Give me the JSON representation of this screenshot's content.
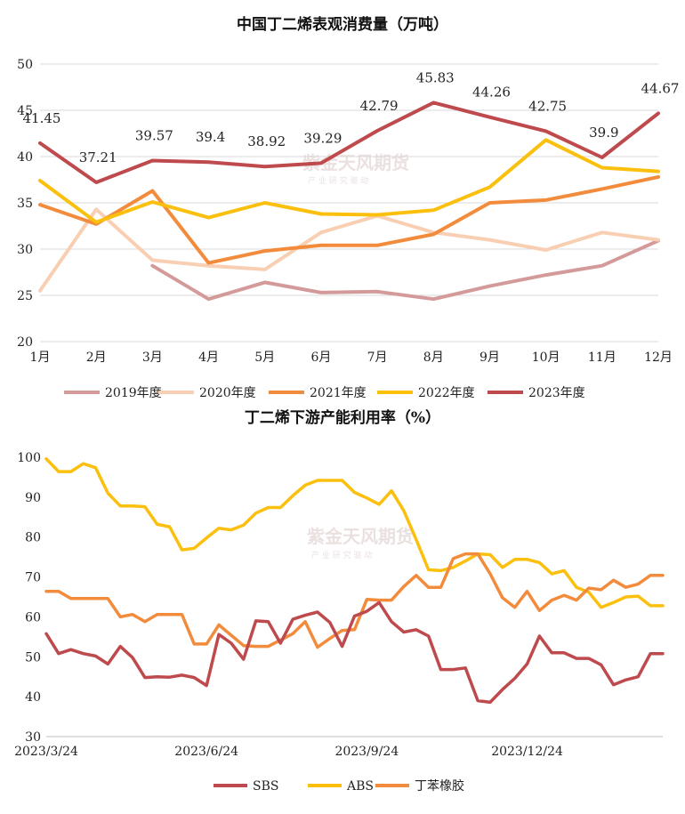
{
  "chart_data": [
    {
      "type": "line",
      "title": "中国丁二烯表观消费量（万吨）",
      "categories": [
        "1月",
        "2月",
        "3月",
        "4月",
        "5月",
        "6月",
        "7月",
        "8月",
        "9月",
        "10月",
        "11月",
        "12月"
      ],
      "ylim": [
        20,
        50
      ],
      "yticks": [
        20,
        25,
        30,
        35,
        40,
        45,
        50
      ],
      "grid": true,
      "legend_position": "bottom",
      "series": [
        {
          "name": "2019年度",
          "color": "#d49a9a",
          "values": [
            null,
            null,
            28.2,
            24.6,
            26.4,
            25.3,
            25.4,
            24.6,
            26.0,
            27.2,
            28.2,
            30.9
          ]
        },
        {
          "name": "2020年度",
          "color": "#f8cfb2",
          "values": [
            25.5,
            34.3,
            28.8,
            28.2,
            27.8,
            31.8,
            33.6,
            31.8,
            31.0,
            29.9,
            31.8,
            31.0
          ]
        },
        {
          "name": "2021年度",
          "color": "#f28c3c",
          "values": [
            34.8,
            32.7,
            36.3,
            28.5,
            29.8,
            30.4,
            30.4,
            31.6,
            35.0,
            35.3,
            36.5,
            37.8
          ]
        },
        {
          "name": "2022年度",
          "color": "#fbbf0e",
          "values": [
            37.4,
            32.9,
            35.1,
            33.4,
            35.0,
            33.8,
            33.7,
            34.2,
            36.7,
            41.8,
            38.8,
            38.4
          ]
        },
        {
          "name": "2023年度",
          "color": "#be4a4d",
          "values": [
            41.45,
            37.21,
            39.57,
            39.4,
            38.92,
            39.29,
            42.79,
            45.83,
            44.26,
            42.75,
            39.9,
            44.67
          ],
          "labels": [
            "41.45",
            "37.21",
            "39.57",
            "39.4",
            "38.92",
            "39.29",
            "42.79",
            "45.83",
            "44.26",
            "42.75",
            "39.9",
            "44.67"
          ]
        }
      ]
    },
    {
      "type": "line",
      "title": "丁二烯下游产能利用率（%）",
      "x": [
        "2023/3/24",
        "2023/3/31",
        "2023/4/7",
        "2023/4/14",
        "2023/4/21",
        "2023/4/28",
        "2023/5/5",
        "2023/5/12",
        "2023/5/19",
        "2023/5/26",
        "2023/6/2",
        "2023/6/9",
        "2023/6/16",
        "2023/6/23",
        "2023/6/30",
        "2023/7/7",
        "2023/7/14",
        "2023/7/21",
        "2023/7/28",
        "2023/8/4",
        "2023/8/11",
        "2023/8/18",
        "2023/8/25",
        "2023/9/1",
        "2023/9/8",
        "2023/9/15",
        "2023/9/22",
        "2023/9/29",
        "2023/10/6",
        "2023/10/13",
        "2023/10/20",
        "2023/10/27",
        "2023/11/3",
        "2023/11/10",
        "2023/11/17",
        "2023/11/24",
        "2023/12/1",
        "2023/12/8",
        "2023/12/15",
        "2023/12/22",
        "2023/12/29",
        "2024/1/5",
        "2024/1/12",
        "2024/1/19",
        "2024/1/26",
        "2024/2/2",
        "2024/2/9",
        "2024/2/16",
        "2024/2/23",
        "2024/3/1",
        "2024/3/8"
      ],
      "xtick_labels": [
        "2023/3/24",
        "2023/6/24",
        "2023/9/24",
        "2023/12/24"
      ],
      "xtick_indices": [
        0,
        13,
        26,
        39
      ],
      "ylim": [
        30,
        100
      ],
      "yticks": [
        30,
        40,
        50,
        60,
        70,
        80,
        90,
        100
      ],
      "grid": false,
      "legend_position": "bottom",
      "series": [
        {
          "name": "SBS",
          "color": "#be4a4d",
          "values": [
            55.8,
            50.8,
            51.8,
            50.8,
            50.2,
            48.2,
            52.6,
            49.8,
            44.8,
            45.0,
            44.9,
            45.4,
            44.8,
            42.8,
            55.6,
            53.4,
            49.4,
            59.0,
            58.8,
            53.4,
            59.4,
            60.4,
            61.2,
            58.6,
            52.6,
            60.2,
            61.4,
            63.6,
            58.8,
            56.2,
            56.8,
            55.2,
            46.8,
            46.8,
            47.2,
            39.0,
            38.6,
            41.8,
            44.6,
            48.2,
            55.2,
            51.0,
            51.0,
            49.6,
            49.6,
            48.0,
            43.0,
            44.2,
            45.0,
            50.8,
            50.8
          ]
        },
        {
          "name": "ABS",
          "color": "#fbbf0e",
          "values": [
            99.6,
            96.4,
            96.4,
            98.4,
            97.4,
            91.0,
            87.8,
            87.8,
            87.6,
            83.2,
            82.6,
            76.8,
            77.2,
            79.8,
            82.2,
            81.8,
            83.0,
            86.0,
            87.4,
            87.4,
            90.4,
            93.0,
            94.2,
            94.2,
            94.2,
            91.2,
            89.8,
            88.2,
            91.6,
            86.6,
            79.4,
            71.8,
            71.6,
            72.4,
            74.0,
            75.8,
            75.6,
            72.4,
            74.4,
            74.4,
            73.6,
            70.8,
            71.6,
            67.4,
            66.2,
            62.4,
            63.6,
            65.0,
            65.2,
            62.8,
            62.8
          ]
        },
        {
          "name": "丁苯橡胶",
          "color": "#f28c3c",
          "values": [
            66.4,
            66.4,
            64.6,
            64.6,
            64.6,
            64.6,
            60.0,
            60.6,
            58.8,
            60.6,
            60.6,
            60.6,
            53.2,
            53.2,
            58.0,
            55.4,
            52.8,
            52.6,
            52.6,
            54.2,
            55.8,
            58.8,
            52.4,
            54.6,
            56.6,
            56.8,
            64.4,
            64.2,
            64.2,
            67.6,
            70.4,
            67.4,
            67.4,
            74.6,
            75.8,
            75.8,
            70.8,
            64.8,
            62.4,
            66.4,
            61.6,
            64.2,
            65.4,
            64.2,
            67.2,
            66.8,
            69.2,
            67.4,
            68.2,
            70.4,
            70.4
          ]
        }
      ]
    }
  ],
  "watermark": {
    "text": "紫金天风期货",
    "subtext": "产 业 研 究 驱 动"
  }
}
